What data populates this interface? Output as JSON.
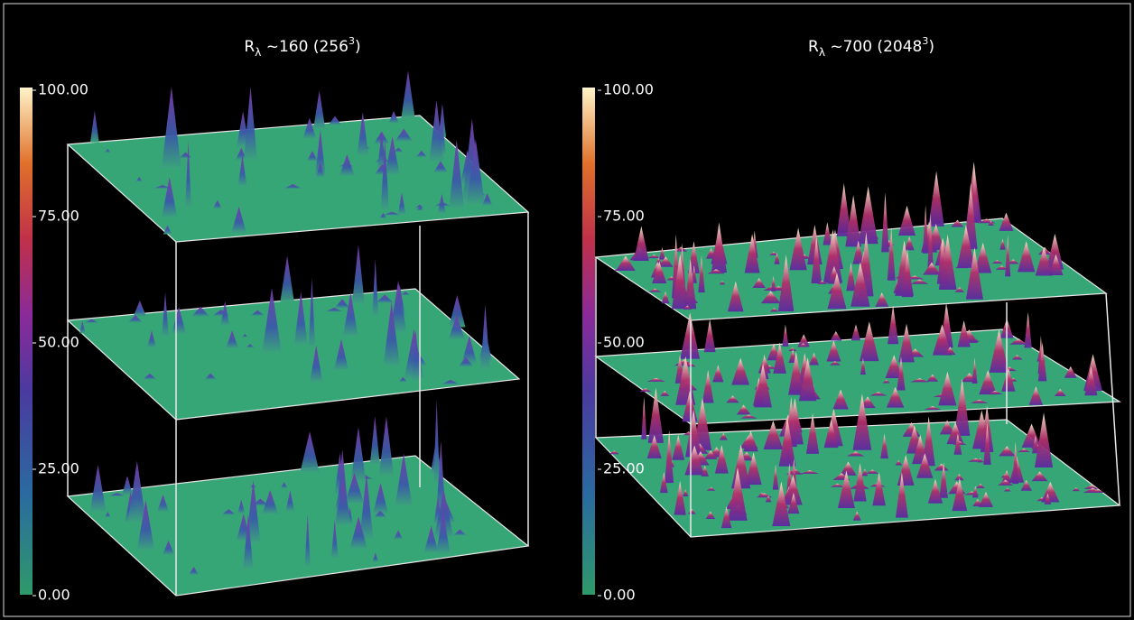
{
  "panels": [
    {
      "title": {
        "base": "R",
        "subscript": "λ",
        "rest": " ~160 (256",
        "superscript": "3",
        "end": ")"
      },
      "colorbar": {
        "range": [
          0,
          100
        ],
        "ticks": [
          {
            "value": 100,
            "label": "100.00"
          },
          {
            "value": 75,
            "label": "75.00"
          },
          {
            "value": 50,
            "label": "50.00"
          },
          {
            "value": 25,
            "label": "25.00"
          },
          {
            "value": 0,
            "label": "0.00"
          }
        ]
      }
    },
    {
      "title": {
        "base": "R",
        "subscript": "λ",
        "rest": " ~700 (2048",
        "superscript": "3",
        "end": ")"
      },
      "colorbar": {
        "range": [
          0,
          100
        ],
        "ticks": [
          {
            "value": 100,
            "label": "100.00"
          },
          {
            "value": 75,
            "label": "75.00"
          },
          {
            "value": 50,
            "label": "50.00"
          },
          {
            "value": 25,
            "label": "25.00"
          },
          {
            "value": 0,
            "label": "0.00"
          }
        ]
      }
    }
  ]
}
